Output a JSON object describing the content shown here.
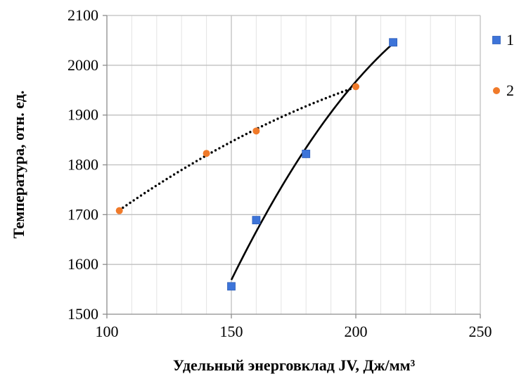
{
  "chart_data": {
    "type": "scatter",
    "title": "",
    "xlabel": "Удельный энерговклад JV, Дж/мм³",
    "ylabel": "Температура, отн. ед.",
    "xlim": [
      100,
      250
    ],
    "ylim": [
      1500,
      2100
    ],
    "x_major_ticks": [
      100,
      150,
      200,
      250
    ],
    "x_minor_step": 10,
    "y_ticks": [
      1500,
      1600,
      1700,
      1800,
      1900,
      2000,
      2100
    ],
    "grid": true,
    "legend_position": "right",
    "series": [
      {
        "name": "1",
        "marker": "square",
        "color": "#3D74D9",
        "points": [
          {
            "x": 150,
            "y": 1556
          },
          {
            "x": 160,
            "y": 1689
          },
          {
            "x": 180,
            "y": 1822
          },
          {
            "x": 215,
            "y": 2046
          }
        ],
        "trendline": {
          "style": "solid",
          "color": "#000000",
          "from_x": 150,
          "to_x": 215
        }
      },
      {
        "name": "2",
        "marker": "circle",
        "color": "#F07A2A",
        "points": [
          {
            "x": 105,
            "y": 1708
          },
          {
            "x": 140,
            "y": 1823
          },
          {
            "x": 160,
            "y": 1868
          },
          {
            "x": 200,
            "y": 1957
          }
        ],
        "trendline": {
          "style": "dotted",
          "color": "#000000",
          "from_x": 105,
          "to_x": 200
        }
      }
    ]
  }
}
